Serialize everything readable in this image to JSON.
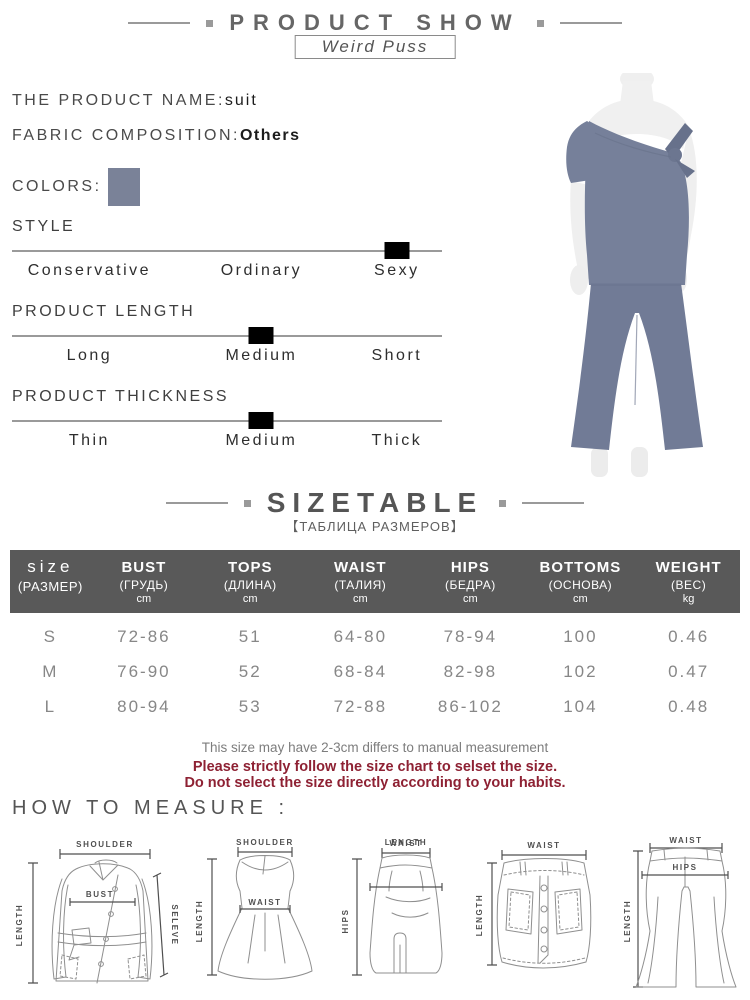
{
  "header": {
    "title": "PRODUCT SHOW",
    "brand": "Weird Puss"
  },
  "product": {
    "name_label": "THE PRODUCT NAME:",
    "name_value": "suit",
    "fabric_label": "FABRIC COMPOSITION:",
    "fabric_value": "Others",
    "colors_label": "COLORS:",
    "color_swatch": "#7a8298"
  },
  "attributes": [
    {
      "title": "STYLE",
      "options": [
        "Conservative",
        "Ordinary",
        "Sexy"
      ],
      "selected_index": 2
    },
    {
      "title": "PRODUCT LENGTH",
      "options": [
        "Long",
        "Medium",
        "Short"
      ],
      "selected_index": 1
    },
    {
      "title": "PRODUCT THICKNESS",
      "options": [
        "Thin",
        "Medium",
        "Thick"
      ],
      "selected_index": 1
    }
  ],
  "size_table": {
    "title": "SIZETABLE",
    "subtitle": "【ТАБЛИЦА РАЗМЕРОВ】",
    "header_bg": "#595959",
    "columns": [
      {
        "en": "size",
        "ru": "(РАЗМЕР)",
        "unit": ""
      },
      {
        "en": "BUST",
        "ru": "(ГРУДЬ)",
        "unit": "cm"
      },
      {
        "en": "TOPS",
        "ru": "(ДЛИНА)",
        "unit": "cm"
      },
      {
        "en": "WAIST",
        "ru": "(ТАЛИЯ)",
        "unit": "cm"
      },
      {
        "en": "HIPS",
        "ru": "(БЕДРА)",
        "unit": "cm"
      },
      {
        "en": "BOTTOMS",
        "ru": "(ОСНОВА)",
        "unit": "cm"
      },
      {
        "en": "WEIGHT",
        "ru": "(ВЕС)",
        "unit": "kg"
      }
    ],
    "rows": [
      {
        "size": "S",
        "values": [
          "72-86",
          "51",
          "64-80",
          "78-94",
          "100",
          "0.46"
        ]
      },
      {
        "size": "M",
        "values": [
          "76-90",
          "52",
          "68-84",
          "82-98",
          "102",
          "0.47"
        ]
      },
      {
        "size": "L",
        "values": [
          "80-94",
          "53",
          "72-88",
          "86-102",
          "104",
          "0.48"
        ]
      }
    ]
  },
  "notes": {
    "line1": "This size may have 2-3cm differs to manual measurement",
    "line2": "Please strictly follow the size chart to selset the size.",
    "line3": "Do not select the size directly according to your habits.",
    "warning_color": "#8e2133"
  },
  "how_to_measure": {
    "title": "HOW TO MEASURE :",
    "diagrams": [
      {
        "name": "jacket",
        "labels": [
          "SHOULDER",
          "LENGTH",
          "BUST",
          "SELEVE"
        ]
      },
      {
        "name": "dress",
        "labels": [
          "SHOULDER",
          "LENGTH",
          "WAIST"
        ]
      },
      {
        "name": "midi-skirt",
        "labels": [
          "WAIST",
          "HIPS",
          "LENGTH"
        ]
      },
      {
        "name": "mini-skirt",
        "labels": [
          "WAIST",
          "LENGTH"
        ]
      },
      {
        "name": "pants",
        "labels": [
          "WAIST",
          "HIPS",
          "LENGTH"
        ]
      }
    ]
  },
  "photo": {
    "garment_color": "#76809a",
    "garment_dark": "#67718b",
    "mannequin_color": "#f0f0f0"
  }
}
